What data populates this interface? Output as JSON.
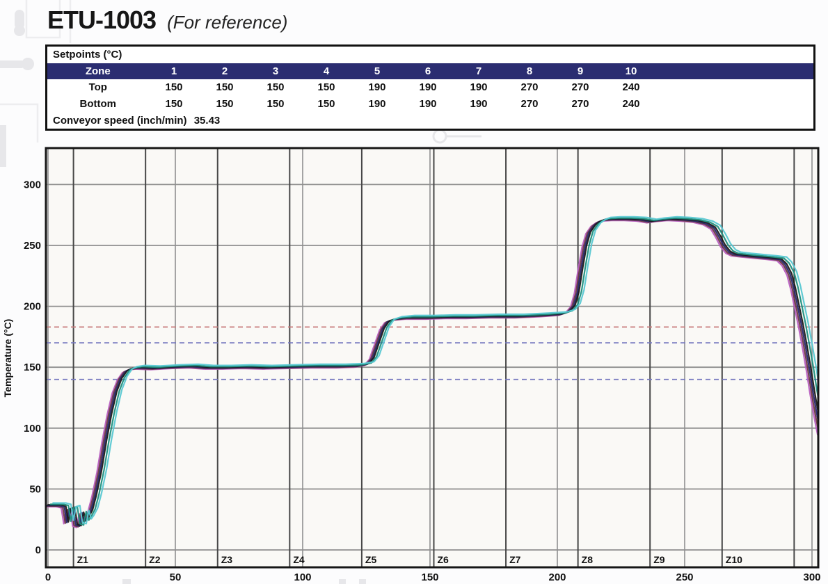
{
  "page": {
    "title": "ETU-1003",
    "subtitle": "(For reference)"
  },
  "setpoints_table": {
    "title": "Setpoints (°C)",
    "zone_header_label": "Zone",
    "zone_numbers": [
      "1",
      "2",
      "3",
      "4",
      "5",
      "6",
      "7",
      "8",
      "9",
      "10"
    ],
    "rows": [
      {
        "label": "Top",
        "values": [
          "150",
          "150",
          "150",
          "150",
          "190",
          "190",
          "190",
          "270",
          "270",
          "240"
        ]
      },
      {
        "label": "Bottom",
        "values": [
          "150",
          "150",
          "150",
          "150",
          "190",
          "190",
          "190",
          "270",
          "270",
          "240"
        ]
      }
    ],
    "conveyor_label": "Conveyor speed (inch/min)",
    "conveyor_value": "35.43",
    "colors": {
      "header_bg": "#2b2d71",
      "header_text": "#ffffff",
      "border": "#111111"
    }
  },
  "chart_data": {
    "type": "line",
    "title": "",
    "xlabel": "",
    "ylabel": "Temperature (°C)",
    "xlim": [
      0,
      302
    ],
    "ylim": [
      0,
      330
    ],
    "xticks": [
      0,
      50,
      100,
      150,
      200,
      250,
      300
    ],
    "yticks": [
      0,
      50,
      100,
      150,
      200,
      250,
      300
    ],
    "grid": true,
    "legend": "none",
    "plot_bg": "#faf9f6",
    "grid_color": "#8f8f8f",
    "zone_line_color": "#474747",
    "border_color": "#161616",
    "zones": {
      "labels": [
        "Z1",
        "Z2",
        "Z3",
        "Z4",
        "Z5",
        "Z6",
        "Z7",
        "Z8",
        "Z9",
        "Z10"
      ],
      "boundaries_x": [
        10,
        38.3,
        66.6,
        94.9,
        123.2,
        151.5,
        179.8,
        208.1,
        236.4,
        264.7,
        293
      ]
    },
    "reference_lines": [
      {
        "y": 183,
        "color": "#c87c7c",
        "style": "dashed"
      },
      {
        "y": 170,
        "color": "#7678bf",
        "style": "dashed"
      },
      {
        "y": 140,
        "color": "#7678bf",
        "style": "dashed"
      }
    ],
    "profile": [
      [
        0,
        37
      ],
      [
        5,
        37
      ],
      [
        7,
        36
      ],
      [
        8,
        23
      ],
      [
        9,
        34
      ],
      [
        10.5,
        35
      ],
      [
        11.5,
        21
      ],
      [
        13,
        20
      ],
      [
        14,
        31
      ],
      [
        15,
        24
      ],
      [
        16,
        27
      ],
      [
        17.5,
        33
      ],
      [
        19,
        45
      ],
      [
        21,
        65
      ],
      [
        23,
        90
      ],
      [
        25,
        112
      ],
      [
        27,
        130
      ],
      [
        29,
        141
      ],
      [
        31,
        147
      ],
      [
        33,
        149
      ],
      [
        36,
        150
      ],
      [
        42,
        149.5
      ],
      [
        50,
        150.5
      ],
      [
        57,
        151
      ],
      [
        63,
        150
      ],
      [
        70,
        150
      ],
      [
        78,
        150.5
      ],
      [
        86,
        150
      ],
      [
        95,
        150.5
      ],
      [
        105,
        151
      ],
      [
        115,
        151
      ],
      [
        122,
        151.5
      ],
      [
        126,
        153
      ],
      [
        128,
        158
      ],
      [
        130,
        170
      ],
      [
        132,
        182
      ],
      [
        134,
        188
      ],
      [
        137,
        190
      ],
      [
        142,
        191
      ],
      [
        150,
        191
      ],
      [
        158,
        191.5
      ],
      [
        166,
        191.5
      ],
      [
        175,
        192
      ],
      [
        185,
        192
      ],
      [
        195,
        193
      ],
      [
        202,
        194
      ],
      [
        205,
        196
      ],
      [
        207,
        201
      ],
      [
        208.5,
        212
      ],
      [
        210,
        232
      ],
      [
        211.5,
        250
      ],
      [
        213,
        261
      ],
      [
        215,
        267
      ],
      [
        217,
        270
      ],
      [
        219,
        271.5
      ],
      [
        223,
        272
      ],
      [
        228,
        272
      ],
      [
        233,
        271.5
      ],
      [
        237,
        270
      ],
      [
        240,
        271
      ],
      [
        245,
        272
      ],
      [
        250,
        271.5
      ],
      [
        255,
        270.5
      ],
      [
        259,
        268.5
      ],
      [
        262,
        265
      ],
      [
        264,
        258
      ],
      [
        266,
        250
      ],
      [
        268,
        245
      ],
      [
        270,
        243
      ],
      [
        274,
        242
      ],
      [
        279,
        241
      ],
      [
        284,
        240
      ],
      [
        288,
        239
      ],
      [
        290,
        235
      ],
      [
        292,
        227
      ],
      [
        293.5,
        215
      ],
      [
        295,
        200
      ],
      [
        296.5,
        185
      ],
      [
        298,
        168
      ],
      [
        299.5,
        150
      ],
      [
        301,
        130
      ],
      [
        302.5,
        112
      ],
      [
        304,
        96
      ]
    ],
    "series": [
      {
        "name": "thermocouple-magenta",
        "color": "#b75fc0",
        "dx": -1.8,
        "dy": -1.5
      },
      {
        "name": "thermocouple-maroon",
        "color": "#6d3a45",
        "dx": -1.2,
        "dy": -1.0
      },
      {
        "name": "thermocouple-navy",
        "color": "#27276e",
        "dx": -0.6,
        "dy": -0.5
      },
      {
        "name": "thermocouple-black",
        "color": "#1b1b1b",
        "dx": 0,
        "dy": 0
      },
      {
        "name": "thermocouple-teal",
        "color": "#1f8f7e",
        "dx": 1.0,
        "dy": 0.5
      },
      {
        "name": "thermocouple-cyan",
        "color": "#58c8d2",
        "dx": 2.0,
        "dy": 1.5
      }
    ]
  }
}
